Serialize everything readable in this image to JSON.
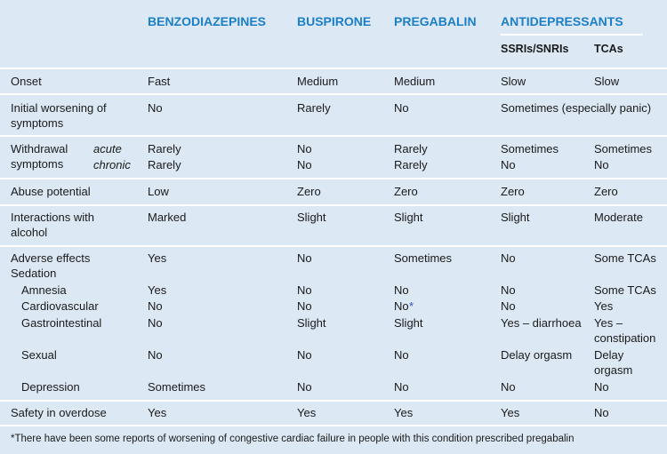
{
  "header": {
    "columns": [
      "BENZODIAZEPINES",
      "BUSPIRONE",
      "PREGABALIN"
    ],
    "group": "ANTIDEPRESSANTS",
    "subcolumns": [
      "SSRIs/SNRIs",
      "TCAs"
    ]
  },
  "rows": [
    {
      "label": "Onset",
      "cells": [
        "Fast",
        "Medium",
        "Medium",
        "Slow",
        "Slow"
      ]
    },
    {
      "label": "Initial worsening of symptoms",
      "cells": [
        "No",
        "Rarely",
        "No",
        "Sometimes (especially panic)"
      ]
    },
    {
      "label": "Withdrawal symptoms",
      "sub": [
        {
          "label": "acute",
          "cells": [
            "Rarely",
            "No",
            "Rarely",
            "Sometimes",
            "Sometimes"
          ]
        },
        {
          "label": "chronic",
          "cells": [
            "Rarely",
            "No",
            "Rarely",
            "No",
            "No"
          ]
        }
      ]
    },
    {
      "label": "Abuse potential",
      "cells": [
        "Low",
        "Zero",
        "Zero",
        "Zero",
        "Zero"
      ]
    },
    {
      "label": "Interactions with alcohol",
      "cells": [
        "Marked",
        "Slight",
        "Slight",
        "Slight",
        "Moderate"
      ]
    },
    {
      "label": "Adverse effects",
      "sub": [
        {
          "label": "Sedation",
          "cells": [
            "Yes",
            "No",
            "Sometimes",
            "No",
            "Some TCAs"
          ]
        },
        {
          "label": "Amnesia",
          "cells": [
            "Yes",
            "No",
            "No",
            "No",
            "Some TCAs"
          ]
        },
        {
          "label": "Cardiovascular",
          "cells": [
            "No",
            "No",
            "No",
            "No",
            "Yes"
          ],
          "mark": "*"
        },
        {
          "label": "Gastrointestinal",
          "cells": [
            "No",
            "Slight",
            "Slight",
            "Yes – diarrhoea",
            "Yes – constipation"
          ]
        },
        {
          "label": "Sexual",
          "cells": [
            "No",
            "No",
            "No",
            "Delay orgasm",
            "Delay orgasm"
          ]
        },
        {
          "label": "Depression",
          "cells": [
            "Sometimes",
            "No",
            "No",
            "No",
            "No"
          ]
        }
      ]
    },
    {
      "label": "Safety in overdose",
      "cells": [
        "Yes",
        "Yes",
        "Yes",
        "Yes",
        "No"
      ]
    }
  ],
  "footnote": "*There have been some reports of worsening of congestive cardiac failure in people with this condition prescribed pregabalin"
}
